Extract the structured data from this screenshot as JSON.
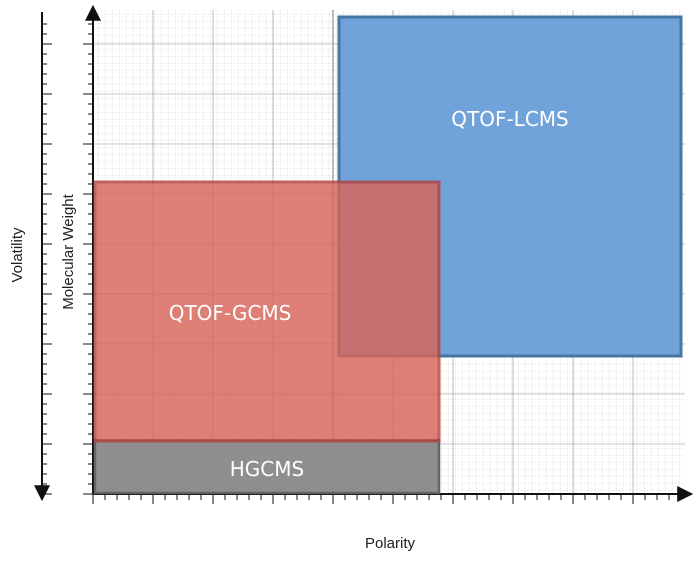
{
  "axes": {
    "x_label": "Polarity",
    "y_label_outer": "Volatility",
    "y_label_inner": "Molecular Weight"
  },
  "regions": [
    {
      "id": "qtof-lcms",
      "label": "QTOF-LCMS",
      "fill": "#6a9fda",
      "stroke": "#3f6f9e"
    },
    {
      "id": "qtof-gcms",
      "label": "QTOF-GCMS",
      "fill": "#d9655a",
      "stroke": "#b2433d"
    },
    {
      "id": "hgcms",
      "label": "HGCMS",
      "fill": "#8a8a8a",
      "stroke": "#5e5e5e"
    }
  ],
  "colors": {
    "axis": "#111111",
    "grid_major": "#8f8f8f",
    "grid_minor": "#c9c9c9"
  }
}
